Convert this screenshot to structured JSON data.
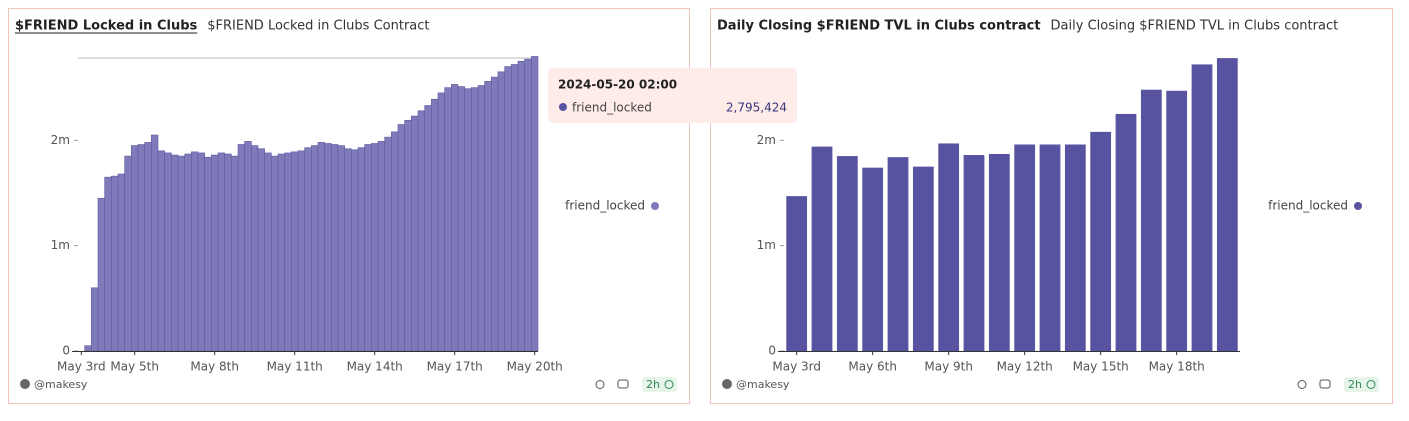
{
  "chart_data": [
    {
      "type": "bar",
      "title": "$FRIEND Locked in Clubs",
      "subtitle": "$FRIEND Locked in Clubs Contract",
      "categories": [
        "May 3rd",
        null,
        null,
        null,
        null,
        null,
        null,
        null,
        "May 5th",
        null,
        null,
        null,
        null,
        null,
        null,
        null,
        null,
        null,
        null,
        null,
        "May 8th",
        null,
        null,
        null,
        null,
        null,
        null,
        null,
        null,
        null,
        null,
        null,
        "May 11th",
        null,
        null,
        null,
        null,
        null,
        null,
        null,
        null,
        null,
        null,
        null,
        "May 14th",
        null,
        null,
        null,
        null,
        null,
        null,
        null,
        null,
        null,
        null,
        null,
        "May 17th",
        null,
        null,
        null,
        null,
        null,
        null,
        null,
        null,
        null,
        null,
        null,
        "May 20th"
      ],
      "series": [
        {
          "name": "friend_locked",
          "color": "#7f7bbb",
          "values": [
            0,
            50000,
            600000,
            1450000,
            1650000,
            1660000,
            1680000,
            1850000,
            1950000,
            1960000,
            1980000,
            2050000,
            1900000,
            1880000,
            1860000,
            1850000,
            1870000,
            1890000,
            1880000,
            1840000,
            1860000,
            1880000,
            1870000,
            1850000,
            1960000,
            1990000,
            1950000,
            1920000,
            1880000,
            1850000,
            1870000,
            1880000,
            1890000,
            1900000,
            1930000,
            1950000,
            1980000,
            1970000,
            1960000,
            1950000,
            1920000,
            1910000,
            1930000,
            1960000,
            1970000,
            1990000,
            2030000,
            2080000,
            2150000,
            2190000,
            2230000,
            2280000,
            2330000,
            2390000,
            2450000,
            2500000,
            2530000,
            2510000,
            2490000,
            2500000,
            2520000,
            2560000,
            2600000,
            2650000,
            2700000,
            2720000,
            2750000,
            2770000,
            2795424
          ]
        }
      ],
      "ylim": [
        0,
        2800000
      ],
      "yticks": [
        0,
        {
          "value": 1000000,
          "label": "1m"
        },
        {
          "value": 2000000,
          "label": "2m"
        }
      ],
      "tooltip": {
        "x": "2024-05-20 02:00",
        "series": "friend_locked",
        "value_label": "2,795,424"
      },
      "author": "@makesy",
      "age": "2h"
    },
    {
      "type": "bar",
      "title": "Daily Closing $FRIEND TVL in Clubs contract",
      "subtitle": "Daily Closing $FRIEND TVL in Clubs contract",
      "categories": [
        "May 3rd",
        null,
        null,
        "May 6th",
        null,
        null,
        "May 9th",
        null,
        null,
        "May 12th",
        null,
        null,
        "May 15th",
        null,
        null,
        "May 18th",
        null,
        null
      ],
      "series": [
        {
          "name": "friend_locked",
          "color": "#5753a0",
          "values": [
            1470000,
            1940000,
            1850000,
            1740000,
            1840000,
            1750000,
            1970000,
            1860000,
            1870000,
            1960000,
            1960000,
            1960000,
            2080000,
            2250000,
            2480000,
            2470000,
            2720000,
            2780000
          ]
        }
      ],
      "ylim": [
        0,
        2800000
      ],
      "yticks": [
        0,
        {
          "value": 1000000,
          "label": "1m"
        },
        {
          "value": 2000000,
          "label": "2m"
        }
      ],
      "author": "@makesy",
      "age": "2h"
    }
  ]
}
